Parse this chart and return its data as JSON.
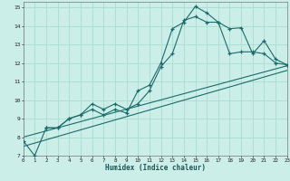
{
  "xlabel": "Humidex (Indice chaleur)",
  "bg_color": "#cceee8",
  "grid_color": "#aaddcc",
  "line_color": "#1a6b6b",
  "xlim": [
    0,
    23
  ],
  "ylim": [
    7,
    15.3
  ],
  "xticks": [
    0,
    1,
    2,
    3,
    4,
    5,
    6,
    7,
    8,
    9,
    10,
    11,
    12,
    13,
    14,
    15,
    16,
    17,
    18,
    19,
    20,
    21,
    22,
    23
  ],
  "yticks": [
    7,
    8,
    9,
    10,
    11,
    12,
    13,
    14,
    15
  ],
  "line1_x": [
    0,
    1,
    2,
    3,
    4,
    5,
    6,
    7,
    8,
    9,
    10,
    11,
    12,
    13,
    14,
    15,
    16,
    17,
    18,
    19,
    20,
    21,
    22,
    23
  ],
  "line1_y": [
    7.8,
    7.0,
    8.5,
    8.5,
    9.0,
    9.2,
    9.5,
    9.2,
    9.5,
    9.3,
    10.5,
    10.8,
    12.0,
    13.85,
    14.2,
    15.05,
    14.7,
    14.2,
    13.85,
    13.9,
    12.5,
    13.2,
    12.2,
    11.9
  ],
  "line2_x": [
    2,
    3,
    4,
    5,
    6,
    7,
    8,
    9,
    10,
    11,
    12,
    13,
    14,
    15,
    16,
    17,
    18,
    19,
    20,
    21,
    22,
    23
  ],
  "line2_y": [
    8.5,
    8.5,
    9.0,
    9.2,
    9.8,
    9.5,
    9.8,
    9.5,
    9.8,
    10.5,
    11.8,
    12.5,
    14.3,
    14.5,
    14.2,
    14.2,
    12.5,
    12.6,
    12.6,
    12.5,
    12.0,
    11.9
  ],
  "line3_x": [
    0,
    23
  ],
  "line3_y": [
    8.0,
    11.85
  ],
  "line4_x": [
    0,
    23
  ],
  "line4_y": [
    7.5,
    11.6
  ]
}
